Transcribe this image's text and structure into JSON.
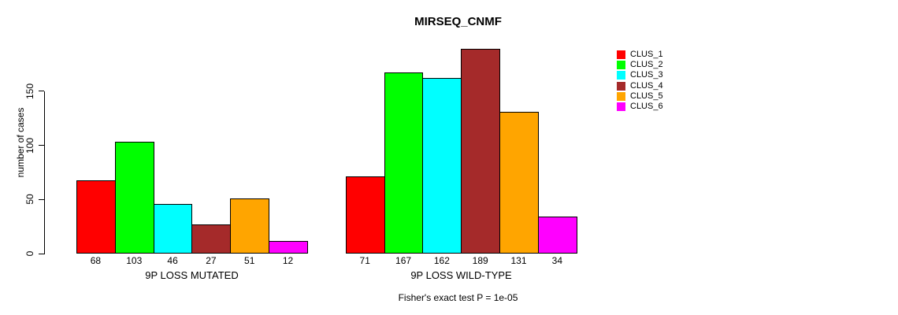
{
  "chart_data": {
    "type": "bar",
    "title": "MIRSEQ_CNMF",
    "ylabel": "number of cases",
    "xlabel": "",
    "yticks": [
      0,
      50,
      100,
      150
    ],
    "ylim": [
      0,
      189
    ],
    "grid": false,
    "legend_position": "top-right",
    "legend": [
      {
        "name": "CLUS_1",
        "color": "#FF0000"
      },
      {
        "name": "CLUS_2",
        "color": "#00FF00"
      },
      {
        "name": "CLUS_3",
        "color": "#00FFFF"
      },
      {
        "name": "CLUS_4",
        "color": "#A52A2A"
      },
      {
        "name": "CLUS_5",
        "color": "#FFA500"
      },
      {
        "name": "CLUS_6",
        "color": "#FF00FF"
      }
    ],
    "groups": [
      {
        "label": "9P LOSS MUTATED",
        "values": [
          68,
          103,
          46,
          27,
          51,
          12
        ]
      },
      {
        "label": "9P LOSS WILD-TYPE",
        "values": [
          71,
          167,
          162,
          189,
          131,
          34
        ]
      }
    ],
    "annotation": "Fisher's exact test P = 1e-05"
  }
}
